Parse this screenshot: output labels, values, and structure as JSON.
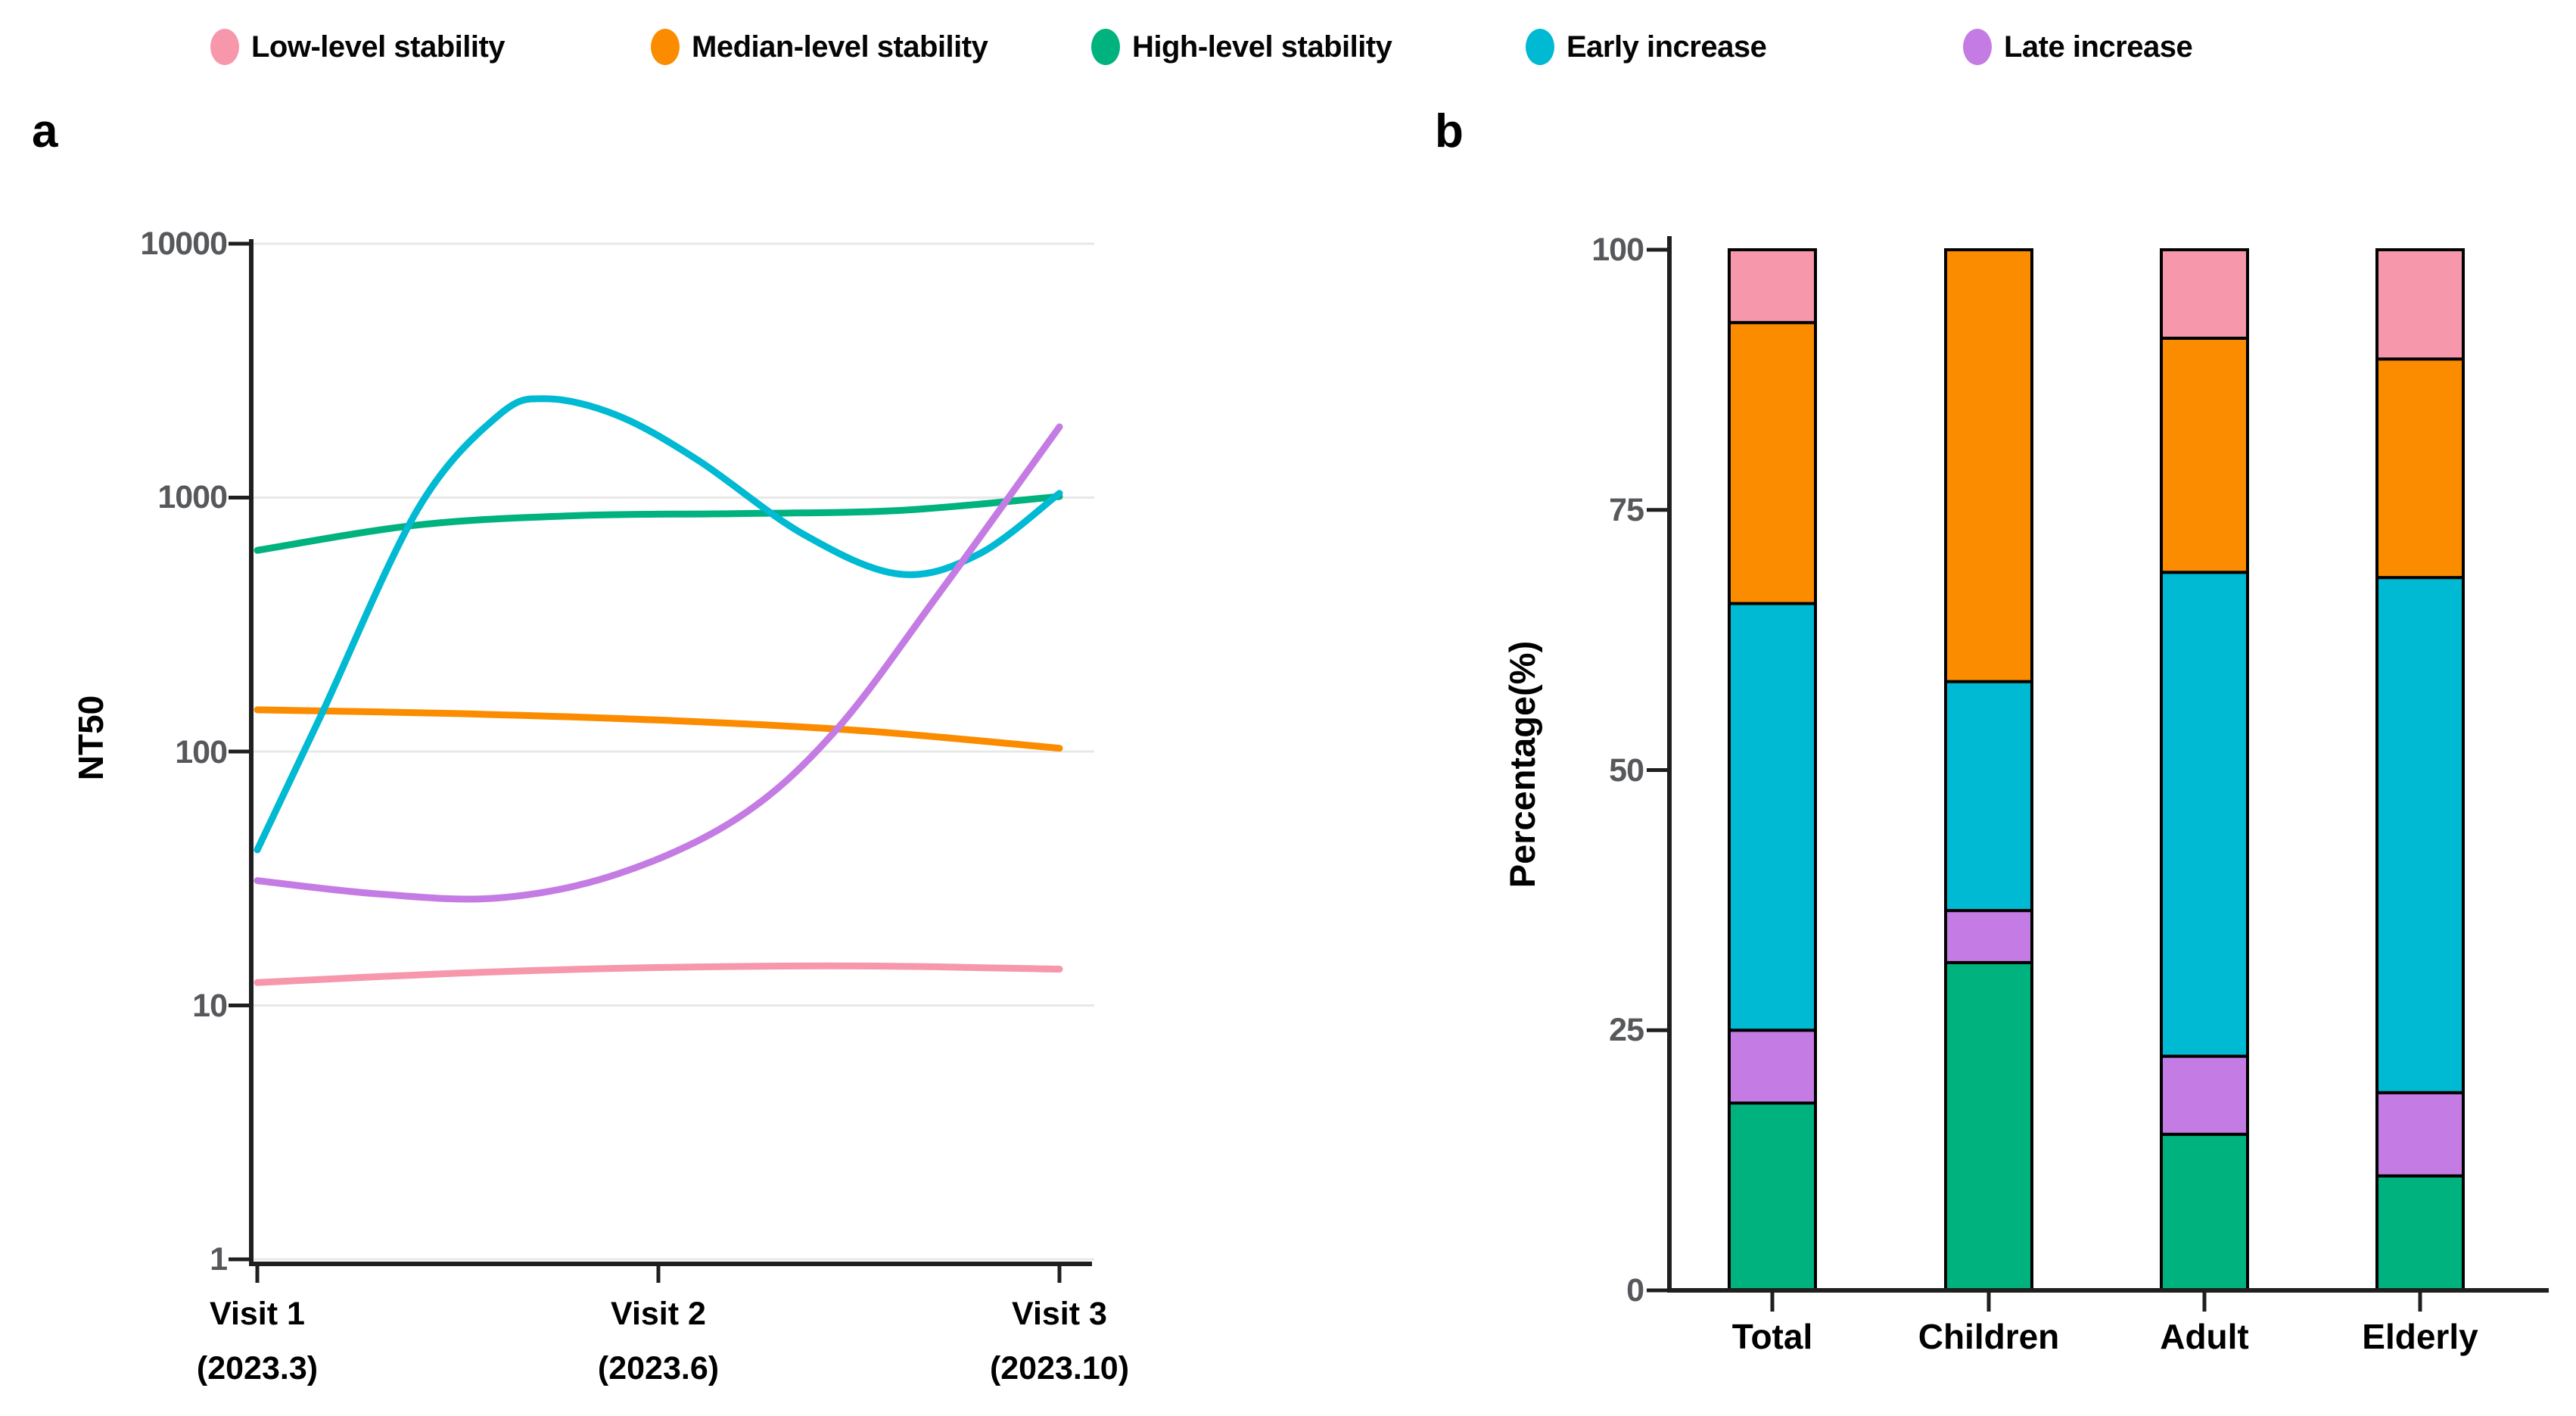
{
  "figure": {
    "background": "#ffffff",
    "axis_color": "#1F1F1F",
    "tick_label_color": "#57585B",
    "gridline_color": "#E8E8E8"
  },
  "legend": {
    "items": [
      {
        "label": "Low-level stability",
        "color": "#F797AC"
      },
      {
        "label": "Median-level stability",
        "color": "#FB8C00"
      },
      {
        "label": "High-level stability",
        "color": "#00B27D"
      },
      {
        "label": "Early increase",
        "color": "#00B9D3"
      },
      {
        "label": "Late increase",
        "color": "#C47BE3"
      }
    ]
  },
  "panel_a": {
    "letter": "a",
    "y_axis_label": "NT50",
    "y_ticks": [
      "10000",
      "1000",
      "100",
      "10",
      "1"
    ],
    "x_ticks": [
      {
        "line1": "Visit 1",
        "line2": "(2023.3)"
      },
      {
        "line1": "Visit 2",
        "line2": "(2023.6)"
      },
      {
        "line1": "Visit 3",
        "line2": "(2023.10)"
      }
    ]
  },
  "panel_b": {
    "letter": "b",
    "y_axis_label": "Percentage(%)",
    "y_ticks": [
      "100",
      "75",
      "50",
      "25",
      "0"
    ],
    "categories": [
      "Total",
      "Children",
      "Adult",
      "Elderly"
    ]
  },
  "chart_data": [
    {
      "type": "line",
      "panel": "a",
      "ylabel": "NT50",
      "yscale": "log10",
      "ylim": [
        1,
        10000
      ],
      "x_categories": [
        "Visit 1 (2023.3)",
        "Visit 2 (2023.6)",
        "Visit 3 (2023.10)"
      ],
      "grid": true,
      "series": [
        {
          "name": "Low-level stability",
          "color": "#F797AC",
          "points": [
            [
              0,
              12.3
            ],
            [
              0.25,
              13.4
            ],
            [
              0.5,
              14.1
            ],
            [
              0.75,
              14.3
            ],
            [
              1,
              13.9
            ]
          ]
        },
        {
          "name": "Median-level stability",
          "color": "#FB8C00",
          "points": [
            [
              0,
              146
            ],
            [
              0.25,
              141
            ],
            [
              0.5,
              133
            ],
            [
              0.75,
              121
            ],
            [
              1,
              103
            ]
          ]
        },
        {
          "name": "High-level stability",
          "color": "#00B27D",
          "points": [
            [
              0,
              620
            ],
            [
              0.2,
              780
            ],
            [
              0.4,
              850
            ],
            [
              0.6,
              865
            ],
            [
              0.8,
              890
            ],
            [
              1,
              1010
            ]
          ]
        },
        {
          "name": "Early increase",
          "color": "#00B9D3",
          "points": [
            [
              0,
              41
            ],
            [
              0.08,
              140
            ],
            [
              0.2,
              900
            ],
            [
              0.3,
              2100
            ],
            [
              0.36,
              2450
            ],
            [
              0.45,
              2100
            ],
            [
              0.55,
              1400
            ],
            [
              0.68,
              720
            ],
            [
              0.8,
              500
            ],
            [
              0.9,
              600
            ],
            [
              1,
              1040
            ]
          ]
        },
        {
          "name": "Late increase",
          "color": "#C47BE3",
          "points": [
            [
              0,
              31
            ],
            [
              0.15,
              27.5
            ],
            [
              0.3,
              26.5
            ],
            [
              0.45,
              33
            ],
            [
              0.6,
              55
            ],
            [
              0.72,
              120
            ],
            [
              0.85,
              420
            ],
            [
              1,
              1900
            ]
          ]
        }
      ]
    },
    {
      "type": "stacked_bar",
      "panel": "b",
      "ylabel": "Percentage(%)",
      "ylim": [
        0,
        100
      ],
      "categories": [
        "Total",
        "Children",
        "Adult",
        "Elderly"
      ],
      "bar_outline": "#000000",
      "stack_order_bottom_to_top": [
        "High-level stability",
        "Late increase",
        "Early increase",
        "Median-level stability",
        "Low-level stability"
      ],
      "series": [
        {
          "name": "High-level stability",
          "color": "#00B27D",
          "values": [
            18,
            31.5,
            15,
            11
          ]
        },
        {
          "name": "Late increase",
          "color": "#C47BE3",
          "values": [
            7,
            5,
            7.5,
            8
          ]
        },
        {
          "name": "Early increase",
          "color": "#00B9D3",
          "values": [
            41,
            22,
            46.5,
            49.5
          ]
        },
        {
          "name": "Median-level stability",
          "color": "#FB8C00",
          "values": [
            27,
            41.5,
            22.5,
            21
          ]
        },
        {
          "name": "Low-level stability",
          "color": "#F797AC",
          "values": [
            7,
            0,
            8.5,
            10.5
          ]
        }
      ]
    }
  ]
}
